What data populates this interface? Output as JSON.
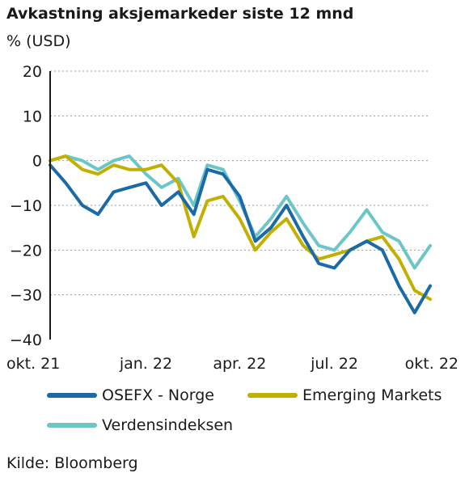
{
  "chart_data": {
    "type": "line",
    "title": "Avkastning aksjemarkeder siste 12 mnd",
    "ylabel": "% (USD)",
    "xlabel": "",
    "ylim": [
      -40,
      20
    ],
    "yticks": [
      20,
      10,
      0,
      -10,
      -20,
      -30,
      -40
    ],
    "xlim": [
      "2021-10-01",
      "2022-10-01"
    ],
    "xticks": [
      {
        "date": "2021-10-01",
        "label": "okt. 21"
      },
      {
        "date": "2022-01-01",
        "label": "jan. 22"
      },
      {
        "date": "2022-04-01",
        "label": "apr. 22"
      },
      {
        "date": "2022-07-01",
        "label": "jul. 22"
      },
      {
        "date": "2022-10-01",
        "label": "okt. 22"
      }
    ],
    "grid": "horizontal-dashed",
    "legend_position": "bottom",
    "x": [
      "2021-10-01",
      "2021-10-16",
      "2021-11-01",
      "2021-11-16",
      "2021-12-01",
      "2021-12-16",
      "2022-01-01",
      "2022-01-16",
      "2022-02-01",
      "2022-02-16",
      "2022-03-01",
      "2022-03-16",
      "2022-04-01",
      "2022-04-16",
      "2022-05-01",
      "2022-05-16",
      "2022-06-01",
      "2022-06-16",
      "2022-07-01",
      "2022-07-16",
      "2022-08-01",
      "2022-08-16",
      "2022-09-01",
      "2022-09-16",
      "2022-10-01"
    ],
    "series": [
      {
        "name": "OSEFX - Norge",
        "color": "#1a6aa8",
        "values": [
          -1,
          -5,
          -10,
          -12,
          -7,
          -6,
          -5,
          -10,
          -7,
          -12,
          -2,
          -3,
          -8,
          -18,
          -15,
          -10,
          -17,
          -23,
          -24,
          -20,
          -18,
          -20,
          -28,
          -34,
          -28
        ]
      },
      {
        "name": "Emerging Markets",
        "color": "#c2b000",
        "values": [
          0,
          1,
          -2,
          -3,
          -1,
          -2,
          -2,
          -1,
          -5,
          -17,
          -9,
          -8,
          -13,
          -20,
          -16,
          -13,
          -19,
          -22,
          -21,
          -20,
          -18,
          -17,
          -22,
          -29,
          -31
        ]
      },
      {
        "name": "Verdensindeksen",
        "color": "#6cc6c8",
        "values": [
          0,
          1,
          0,
          -2,
          0,
          1,
          -3,
          -6,
          -4,
          -10,
          -1,
          -2,
          -9,
          -17,
          -13,
          -8,
          -14,
          -19,
          -20,
          -16,
          -11,
          -16,
          -18,
          -24,
          -19
        ]
      }
    ]
  },
  "source": "Kilde: Bloomberg"
}
